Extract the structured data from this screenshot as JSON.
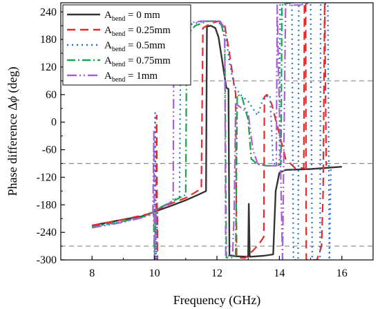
{
  "chart_data": {
    "type": "line",
    "xlabel": "Frequency (GHz)",
    "ylabel_text": "Phase difference Δ",
    "ylabel_phi": "ϕ",
    "ylabel_unit": " (deg)",
    "xlim": [
      7,
      17
    ],
    "ylim": [
      -300,
      260
    ],
    "x_ticks": [
      8,
      10,
      12,
      14,
      16
    ],
    "y_ticks": [
      -300,
      -240,
      -180,
      -120,
      -60,
      0,
      60,
      120,
      180,
      240
    ],
    "reference_lines": [
      90,
      -90,
      -270
    ],
    "legend_position": "top-left",
    "series": [
      {
        "name": "A",
        "sub": "bend",
        "suffix": " = 0 mm",
        "color": "#333333",
        "dash": "",
        "points": [
          [
            8,
            -225
          ],
          [
            9,
            -212
          ],
          [
            9.6,
            -205
          ],
          [
            10,
            -195
          ],
          [
            10.5,
            -183
          ],
          [
            11,
            -170
          ],
          [
            11.4,
            -158
          ],
          [
            11.65,
            -150
          ],
          [
            11.68,
            208
          ],
          [
            11.8,
            210
          ],
          [
            11.95,
            205
          ],
          [
            12.05,
            185
          ],
          [
            12.2,
            120
          ],
          [
            12.3,
            75
          ],
          [
            12.37,
            72
          ],
          [
            12.4,
            -290
          ],
          [
            12.6,
            -292
          ],
          [
            13,
            -293
          ],
          [
            13.02,
            -178
          ],
          [
            13.05,
            -293
          ],
          [
            13.5,
            -291
          ],
          [
            13.8,
            -288
          ],
          [
            13.88,
            -150
          ],
          [
            14,
            -110
          ],
          [
            14.2,
            -104
          ],
          [
            15,
            -102
          ],
          [
            16,
            -97
          ]
        ]
      },
      {
        "name": "A",
        "sub": "bend",
        "suffix": " = 0.25mm",
        "color": "#e8282b",
        "dash": "12,7",
        "points": [
          [
            8,
            -225
          ],
          [
            9,
            -212
          ],
          [
            9.8,
            -200
          ],
          [
            10.05,
            -195
          ],
          [
            10.07,
            15
          ],
          [
            10.09,
            -300
          ],
          [
            10.1,
            -190
          ],
          [
            10.5,
            -178
          ],
          [
            11,
            -165
          ],
          [
            11.5,
            -145
          ],
          [
            11.55,
            205
          ],
          [
            11.8,
            215
          ],
          [
            12.05,
            220
          ],
          [
            12.25,
            210
          ],
          [
            12.4,
            150
          ],
          [
            12.55,
            80
          ],
          [
            12.6,
            62
          ],
          [
            12.63,
            -295
          ],
          [
            12.9,
            -296
          ],
          [
            13.15,
            -280
          ],
          [
            13.35,
            -265
          ],
          [
            13.5,
            -250
          ],
          [
            13.52,
            55
          ],
          [
            13.6,
            60
          ],
          [
            13.75,
            40
          ],
          [
            13.9,
            0
          ],
          [
            14.05,
            -40
          ],
          [
            14.2,
            -80
          ],
          [
            14.5,
            -100
          ],
          [
            14.78,
            -100
          ],
          [
            14.8,
            260
          ],
          [
            14.84,
            260
          ],
          [
            14.86,
            -300
          ],
          [
            15.2,
            -300
          ],
          [
            15.35,
            -270
          ],
          [
            15.4,
            -150
          ],
          [
            15.45,
            260
          ],
          [
            15.5,
            -95
          ]
        ]
      },
      {
        "name": "A",
        "sub": "bend",
        "suffix": " = 0.5mm",
        "color": "#1f6fd8",
        "dash": "2,5",
        "points": [
          [
            8,
            -228
          ],
          [
            9,
            -216
          ],
          [
            9.7,
            -205
          ],
          [
            10,
            -200
          ],
          [
            10.02,
            20
          ],
          [
            10.05,
            -300
          ],
          [
            10.1,
            -190
          ],
          [
            10.5,
            -175
          ],
          [
            10.8,
            -162
          ],
          [
            10.84,
            200
          ],
          [
            11.1,
            212
          ],
          [
            11.6,
            220
          ],
          [
            12,
            220
          ],
          [
            12.25,
            205
          ],
          [
            12.4,
            130
          ],
          [
            12.55,
            80
          ],
          [
            12.75,
            60
          ],
          [
            13,
            45
          ],
          [
            13.3,
            15
          ],
          [
            13.5,
            55
          ],
          [
            13.7,
            58
          ],
          [
            13.8,
            -90
          ],
          [
            14,
            -92
          ],
          [
            14.02,
            255
          ],
          [
            14.4,
            260
          ],
          [
            14.45,
            -300
          ],
          [
            14.6,
            -300
          ],
          [
            14.62,
            255
          ],
          [
            14.9,
            258
          ],
          [
            15,
            258
          ],
          [
            15.05,
            -300
          ],
          [
            15.3,
            -300
          ],
          [
            15.32,
            255
          ],
          [
            15.55,
            258
          ],
          [
            15.6,
            -300
          ],
          [
            15.65,
            -95
          ]
        ]
      },
      {
        "name": "A",
        "sub": "bend",
        "suffix": " = 0.75mm",
        "color": "#17a44a",
        "dash": "12,4,2,4",
        "points": [
          [
            8,
            -228
          ],
          [
            9,
            -216
          ],
          [
            9.7,
            -205
          ],
          [
            9.97,
            -195
          ],
          [
            10,
            -300
          ],
          [
            10.05,
            -190
          ],
          [
            10.5,
            -175
          ],
          [
            11,
            -158
          ],
          [
            11.03,
            190
          ],
          [
            11.3,
            210
          ],
          [
            11.7,
            220
          ],
          [
            12.05,
            220
          ],
          [
            12.15,
            210
          ],
          [
            12.25,
            180
          ],
          [
            12.3,
            -295
          ],
          [
            12.5,
            -295
          ],
          [
            12.6,
            -290
          ],
          [
            12.65,
            60
          ],
          [
            12.8,
            55
          ],
          [
            13,
            5
          ],
          [
            13.1,
            -80
          ],
          [
            13.3,
            -92
          ],
          [
            13.6,
            -95
          ],
          [
            13.9,
            -95
          ],
          [
            14.05,
            -92
          ],
          [
            14.08,
            255
          ],
          [
            14.3,
            260
          ],
          [
            14.8,
            262
          ],
          [
            15.5,
            262
          ]
        ]
      },
      {
        "name": "A",
        "sub": "bend",
        "suffix": " = 1mm",
        "color": "#a95ed6",
        "dash": "14,4,2,4,2,4",
        "points": [
          [
            8,
            -230
          ],
          [
            9,
            -218
          ],
          [
            9.6,
            -208
          ],
          [
            9.95,
            -200
          ],
          [
            9.98,
            -20
          ],
          [
            10,
            -300
          ],
          [
            10.05,
            -190
          ],
          [
            10.4,
            -180
          ],
          [
            10.6,
            -170
          ],
          [
            10.62,
            200
          ],
          [
            11,
            215
          ],
          [
            11.5,
            220
          ],
          [
            12.1,
            220
          ],
          [
            12.2,
            210
          ],
          [
            12.25,
            180
          ],
          [
            12.28,
            -292
          ],
          [
            12.5,
            -290
          ],
          [
            12.55,
            -200
          ],
          [
            12.6,
            40
          ],
          [
            12.8,
            30
          ],
          [
            13,
            20
          ],
          [
            13.15,
            -60
          ],
          [
            13.3,
            -90
          ],
          [
            13.6,
            -95
          ],
          [
            13.9,
            -95
          ],
          [
            13.93,
            255
          ],
          [
            14.1,
            -300
          ],
          [
            14.2,
            255
          ],
          [
            14.5,
            255
          ],
          [
            14.7,
            255
          ]
        ]
      }
    ]
  }
}
